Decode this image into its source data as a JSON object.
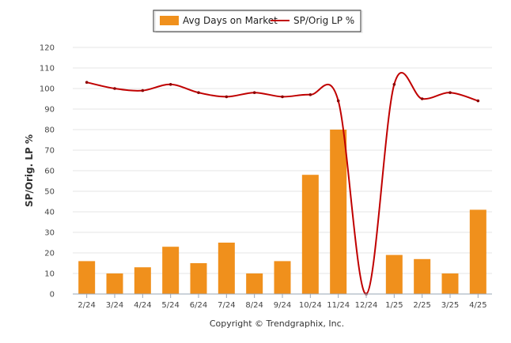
{
  "chart_data": {
    "type": "bar",
    "categories": [
      "2/24",
      "3/24",
      "4/24",
      "5/24",
      "6/24",
      "7/24",
      "8/24",
      "9/24",
      "10/24",
      "11/24",
      "12/24",
      "1/25",
      "2/25",
      "3/25",
      "4/25"
    ],
    "series": [
      {
        "name": "Avg Days on Market",
        "type": "bar",
        "color": "#F0901C",
        "values": [
          16,
          10,
          13,
          23,
          15,
          25,
          10,
          16,
          58,
          80,
          0,
          19,
          17,
          10,
          41
        ]
      },
      {
        "name": "SP/Orig LP %",
        "type": "line",
        "color": "#C00000",
        "values": [
          103,
          100,
          99,
          102,
          98,
          96,
          98,
          96,
          97,
          94,
          0,
          102,
          95,
          98,
          94
        ]
      }
    ],
    "ylabel": "SP/Orig. LP %",
    "ylim": [
      0,
      120
    ],
    "yticks": [
      0,
      10,
      20,
      30,
      40,
      50,
      60,
      70,
      80,
      90,
      100,
      110,
      120
    ],
    "grid": true,
    "legend": "top-center"
  },
  "credit": "Copyright © Trendgraphix, Inc."
}
